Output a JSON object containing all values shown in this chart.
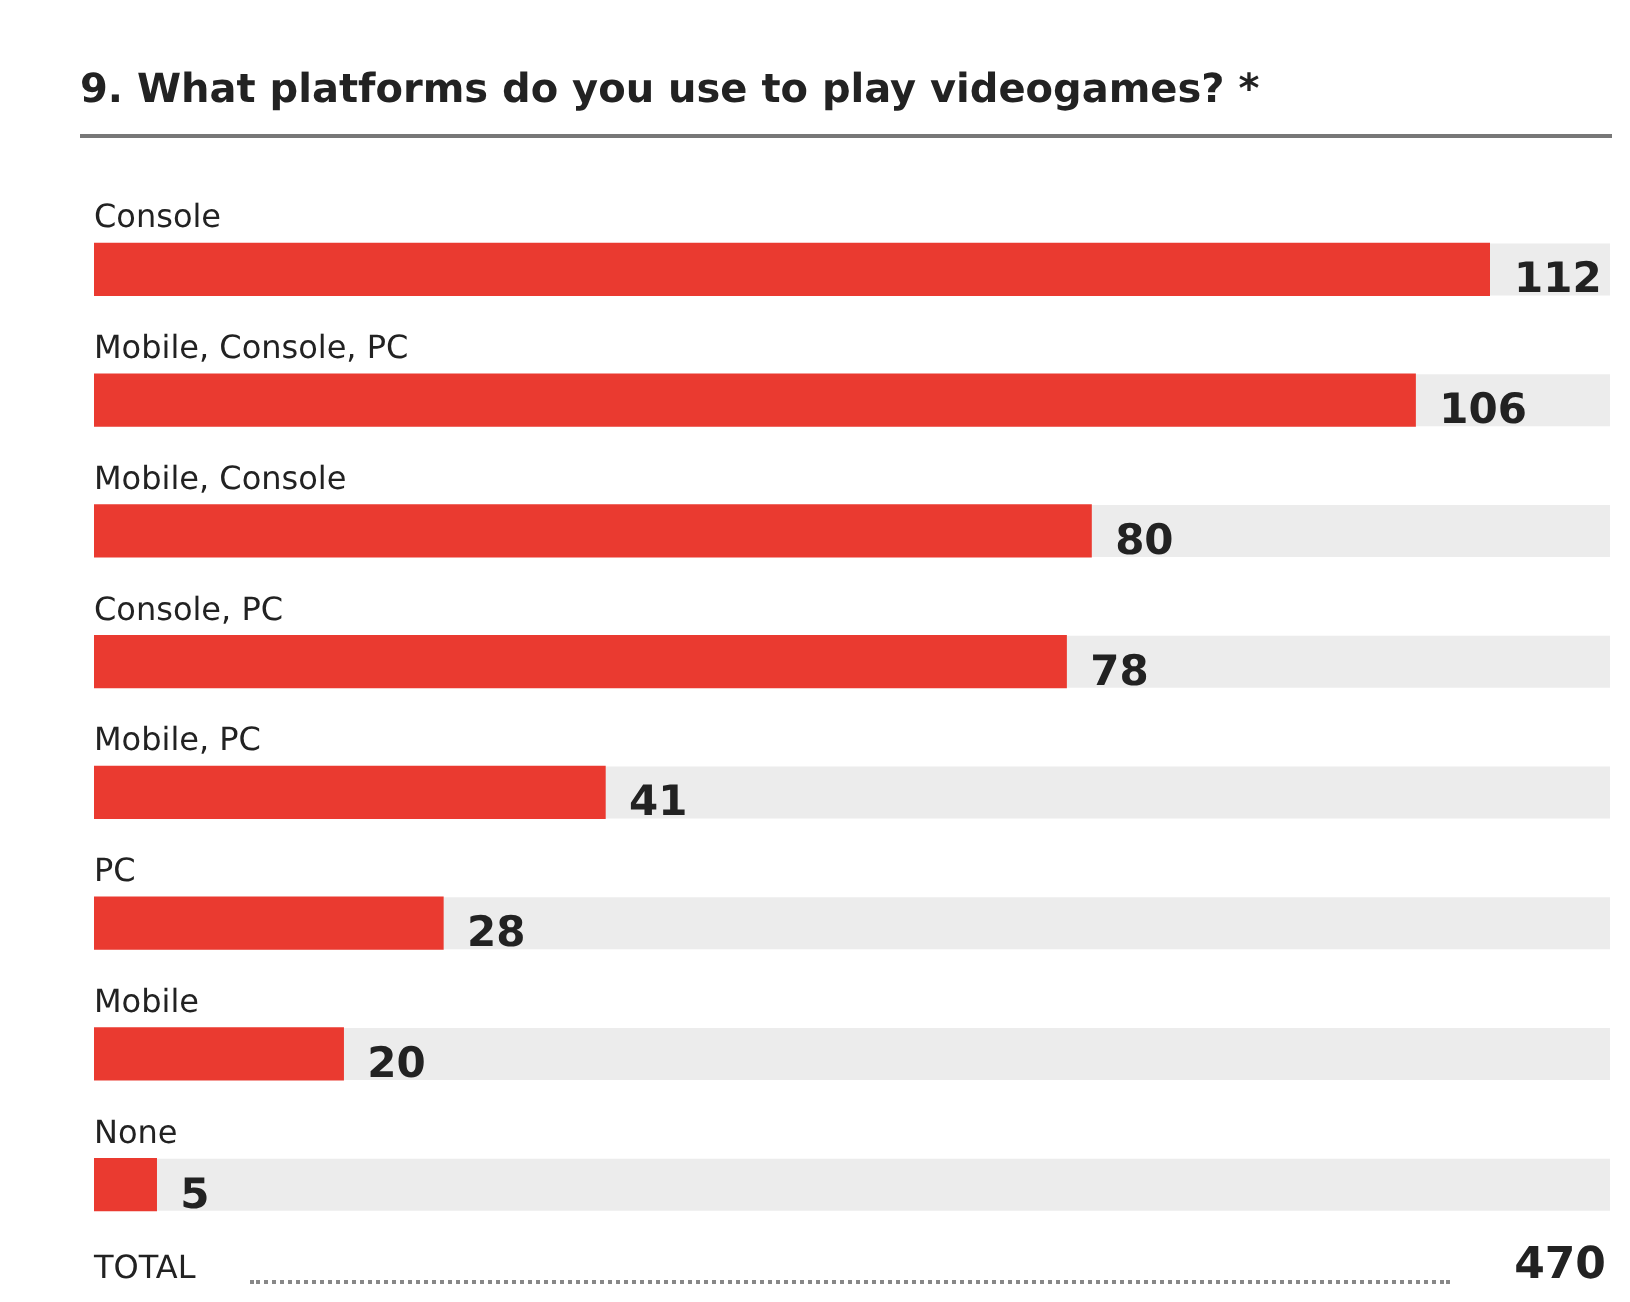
{
  "chart_data": {
    "type": "bar",
    "orientation": "horizontal",
    "title": "9. What platforms do you use to play videogames? *",
    "categories": [
      "Console",
      "Mobile, Console, PC",
      "Mobile, Console",
      "Console, PC",
      "Mobile, PC",
      "PC",
      "Mobile",
      "None"
    ],
    "values": [
      112,
      106,
      80,
      78,
      41,
      28,
      20,
      5
    ],
    "color": "#ea3a30",
    "data_labels": true,
    "annotations": [
      "TOTAL",
      "470"
    ]
  }
}
